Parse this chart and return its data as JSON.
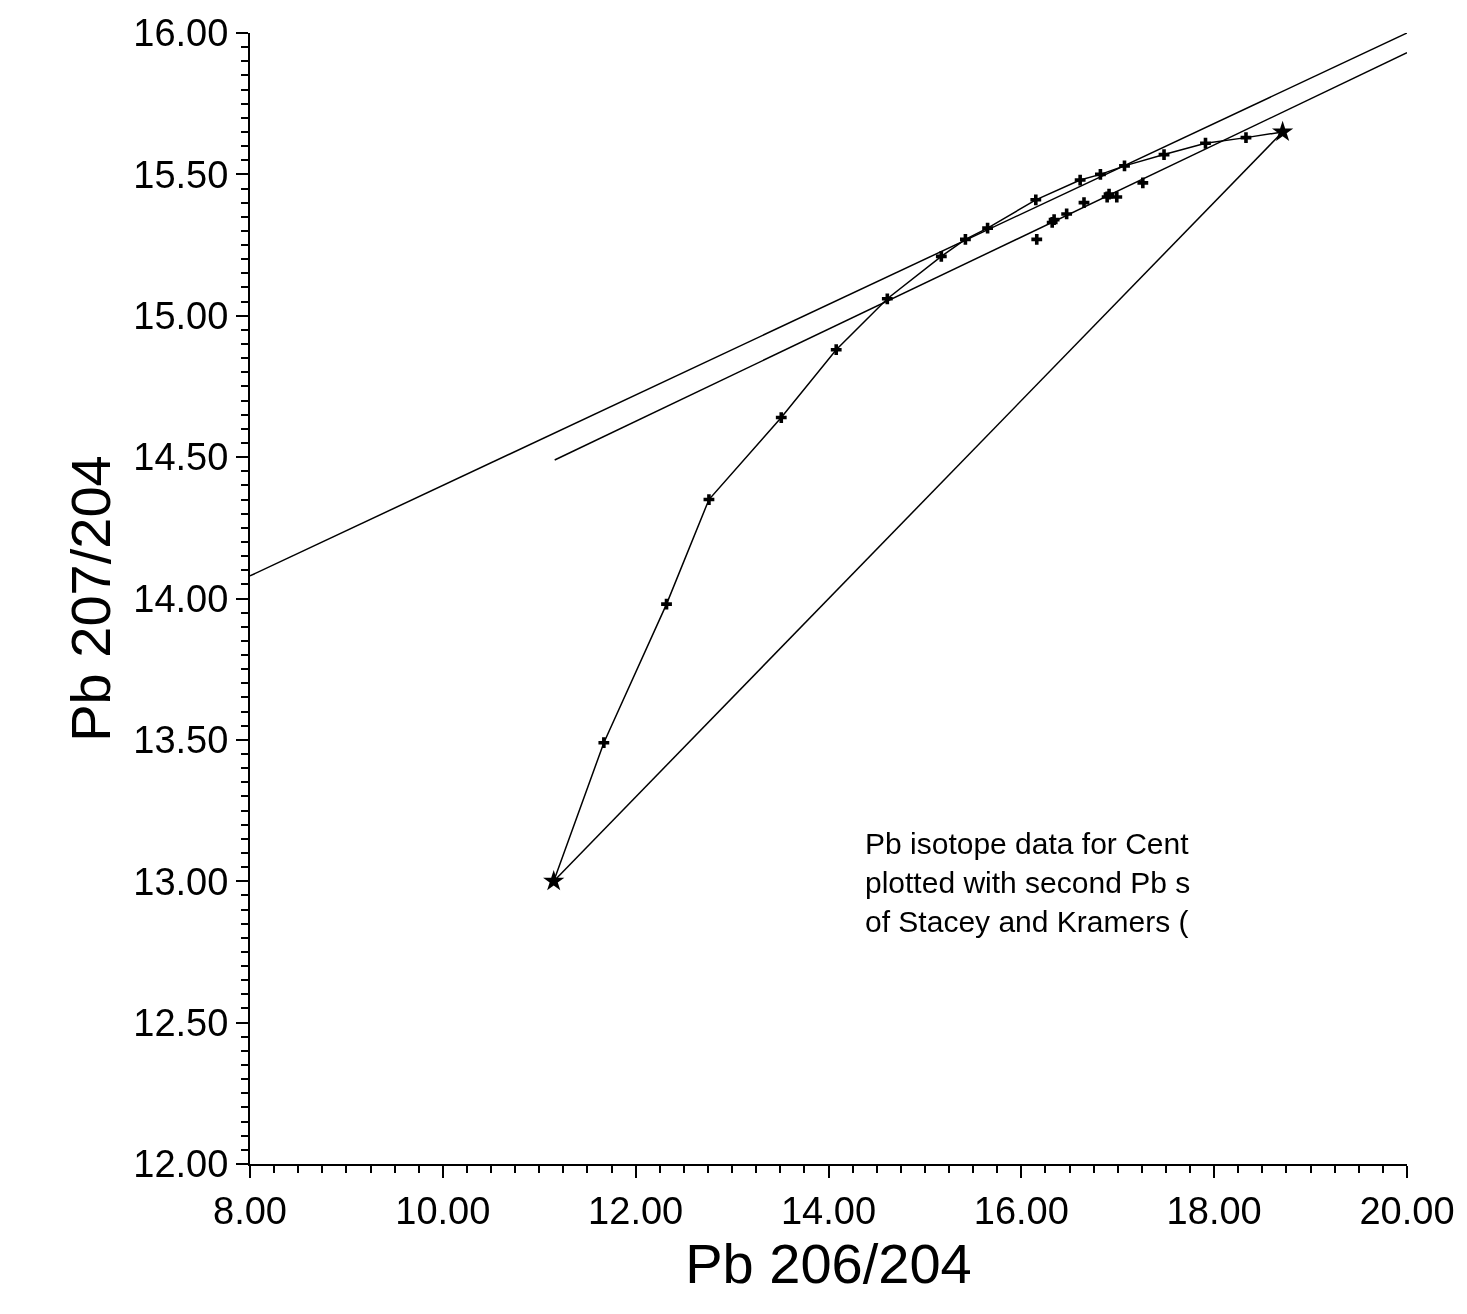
{
  "chart_data": {
    "type": "line",
    "xlabel": "Pb 206/204",
    "ylabel": "Pb 207/204",
    "xlim": [
      8,
      20
    ],
    "ylim": [
      12,
      16
    ],
    "xticks": [
      {
        "value": 8,
        "label": "8.00"
      },
      {
        "value": 10,
        "label": "10.00"
      },
      {
        "value": 12,
        "label": "12.00"
      },
      {
        "value": 14,
        "label": "14.00"
      },
      {
        "value": 16,
        "label": "16.00"
      },
      {
        "value": 18,
        "label": "18.00"
      },
      {
        "value": 20,
        "label": "20.00"
      }
    ],
    "yticks": [
      {
        "value": 12,
        "label": "12.00"
      },
      {
        "value": 12.5,
        "label": "12.50"
      },
      {
        "value": 13,
        "label": "13.00"
      },
      {
        "value": 13.5,
        "label": "13.50"
      },
      {
        "value": 14,
        "label": "14.00"
      },
      {
        "value": 14.5,
        "label": "14.50"
      },
      {
        "value": 15,
        "label": "15.00"
      },
      {
        "value": 15.5,
        "label": "15.50"
      },
      {
        "value": 16,
        "label": "16.00"
      }
    ],
    "series": [
      {
        "color": "#000000",
        "marker": "none",
        "x": [
          8,
          20
        ],
        "values": [
          14.08,
          16.0
        ]
      },
      {
        "color": "#000000",
        "marker": "none",
        "x": [
          11.16,
          20
        ],
        "values": [
          14.49,
          15.93
        ]
      },
      {
        "type": "scatter",
        "color": "#000000",
        "marker": "cross",
        "x": [
          11.67,
          12.32,
          12.76,
          13.51,
          14.08,
          14.61,
          15.17,
          15.42,
          15.65,
          16.15,
          16.61,
          16.82,
          17.07,
          17.48,
          17.91,
          18.33
        ],
        "values": [
          13.49,
          13.98,
          14.35,
          14.64,
          14.88,
          15.06,
          15.21,
          15.27,
          15.31,
          15.41,
          15.48,
          15.5,
          15.53,
          15.57,
          15.61,
          15.63
        ]
      },
      {
        "color": "#000000",
        "marker": "none",
        "x": [
          11.15,
          11.67,
          12.32,
          12.76,
          13.51,
          14.08,
          14.61,
          15.17,
          15.42,
          15.65,
          16.15,
          16.61,
          16.82,
          17.07,
          17.48,
          17.91,
          18.33,
          18.71
        ],
        "values": [
          13.0,
          13.49,
          13.98,
          14.35,
          14.64,
          14.88,
          15.06,
          15.21,
          15.27,
          15.31,
          15.41,
          15.48,
          15.5,
          15.53,
          15.57,
          15.61,
          15.63,
          15.65
        ]
      },
      {
        "type": "scatter",
        "color": "#000000",
        "marker": "cross",
        "x": [
          16.16,
          16.32,
          16.34,
          16.47,
          16.65,
          16.89,
          16.91,
          16.99,
          17.26
        ],
        "values": [
          15.27,
          15.33,
          15.34,
          15.36,
          15.4,
          15.42,
          15.43,
          15.42,
          15.47
        ]
      },
      {
        "color": "#000000",
        "marker": "none",
        "x": [
          11.15,
          18.71
        ],
        "values": [
          13.0,
          15.65
        ]
      },
      {
        "type": "scatter",
        "color": "#000000",
        "marker": "star",
        "x": [
          11.15,
          18.71
        ],
        "values": [
          13.0,
          15.65
        ]
      }
    ],
    "annotations": [
      "Pb isotope data for Cent\nplotted with second Pb s\nof Stacey and Kramers ("
    ]
  }
}
